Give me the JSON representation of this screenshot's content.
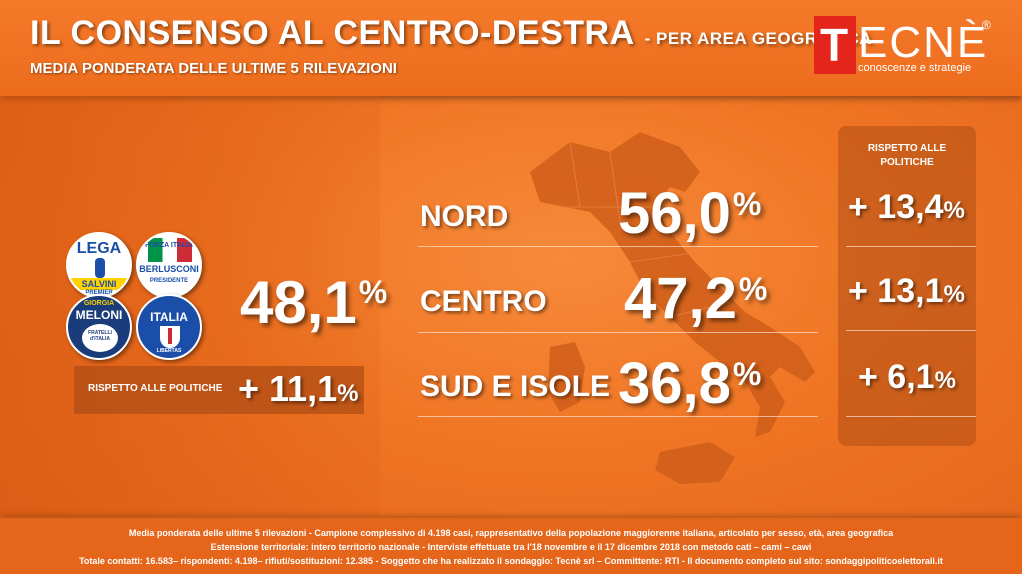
{
  "header": {
    "title": "IL CONSENSO AL CENTRO-DESTRA",
    "title_suffix": "- PER AREA GEOGRAFICA",
    "subtitle": "MEDIA PONDERATA DELLE ULTIME 5 RILEVAZIONI"
  },
  "logo": {
    "first_letter": "T",
    "rest": "ECNÈ",
    "registered": "®",
    "tagline": "conoscenze e strategie",
    "box_color": "#e3251c"
  },
  "parties": {
    "lega": {
      "top": "LEGA",
      "leader": "SALVINI",
      "role": "PREMIER"
    },
    "forza_italia": {
      "top": "FORZA ITALIA",
      "leader": "BERLUSCONI",
      "role": "PRESIDENTE"
    },
    "fratelli_italia": {
      "leader_first": "GIORGIA",
      "leader": "MELONI",
      "name": "FRATELLI d'ITALIA"
    },
    "italia": {
      "name": "ITALIA",
      "sub": "LIBERTAS"
    }
  },
  "total": {
    "value": "48,1",
    "unit": "%",
    "delta_label": "RISPETTO ALLE POLITICHE",
    "delta_value": "+ 11,1",
    "delta_unit": "%"
  },
  "regions_panel_title": "RISPETTO ALLE POLITICHE",
  "regions": [
    {
      "name": "NORD",
      "value": "56,0",
      "unit": "%",
      "delta": "+ 13,4",
      "delta_unit": "%"
    },
    {
      "name": "CENTRO",
      "value": "47,2",
      "unit": "%",
      "delta": "+ 13,1",
      "delta_unit": "%"
    },
    {
      "name": "SUD E ISOLE",
      "value": "36,8",
      "unit": "%",
      "delta": "+ 6,1",
      "delta_unit": "%"
    }
  ],
  "footer": {
    "line1": "Media ponderata delle ultime 5 rilevazioni - Campione complessivo di  4.198 casi, rappresentativo della popolazione maggiorenne italiana, articolato per sesso, età, area geografica",
    "line2": "Estensione territoriale: intero territorio nazionale - Interviste effettuate tra  l'18 novembre e il 17 dicembre 2018 con metodo cati – cami – cawi",
    "line3": "Totale contatti: 16.583– rispondenti:  4.198– rifiuti/sostituzioni: 12.385 - Soggetto che ha realizzato il sondaggio: Tecnè srl – Committente: RTI - Il documento completo sul sito: sondaggipoliticoelettorali.it"
  },
  "colors": {
    "background": "#ef7423",
    "panel": "#b04e16",
    "text": "#ffffff"
  }
}
